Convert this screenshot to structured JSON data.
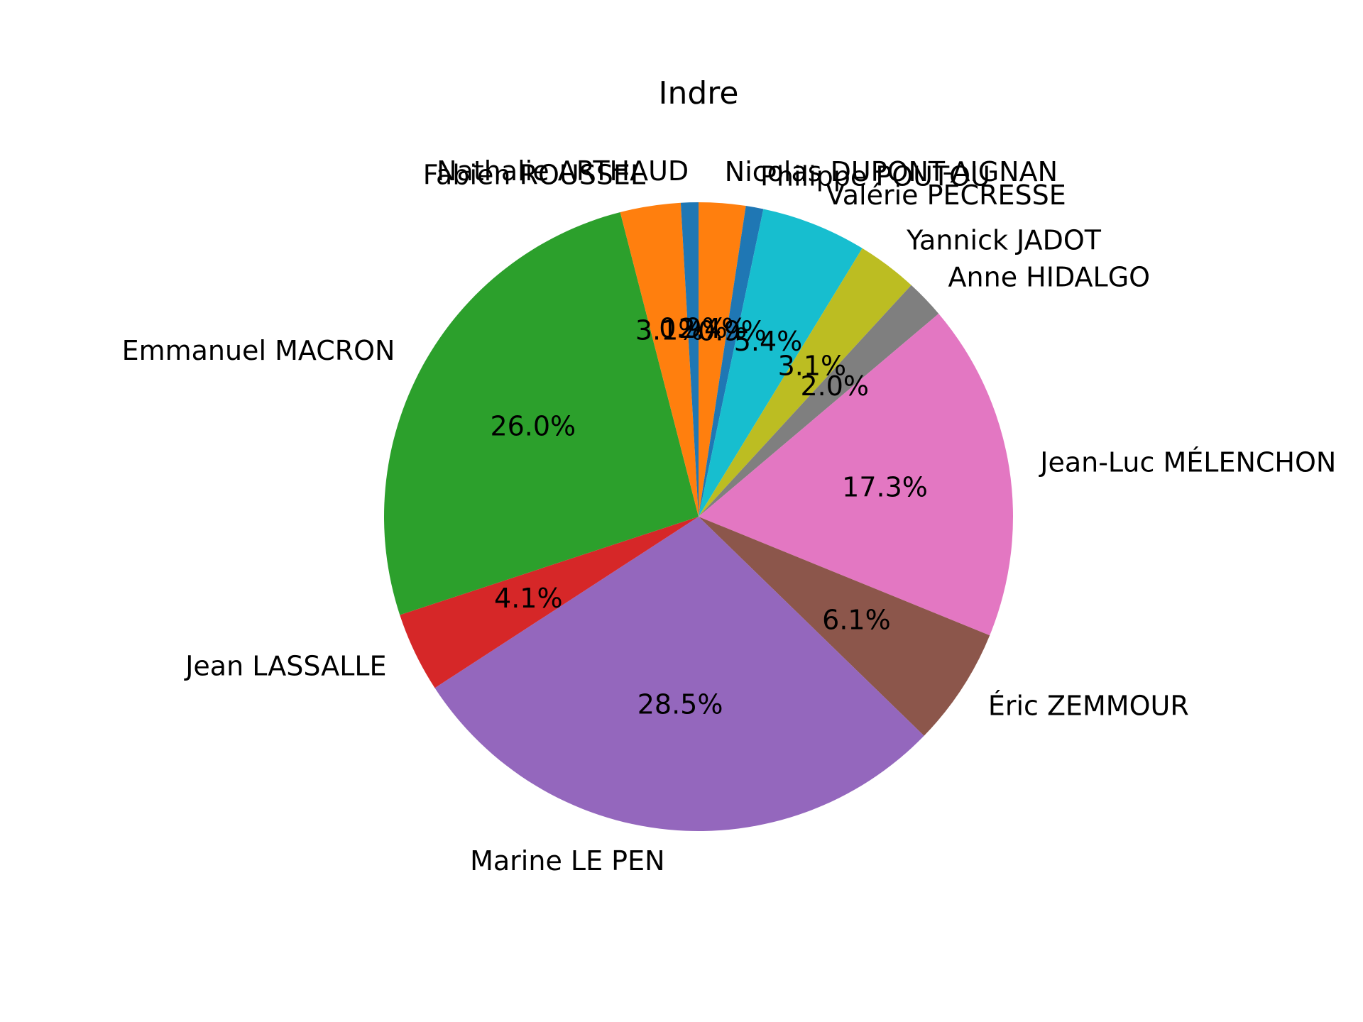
{
  "chart_data": {
    "type": "pie",
    "title": "Indre",
    "start_angle_deg": 90,
    "direction": "clockwise",
    "slices": [
      {
        "label": "Nicolas DUPONT-AIGNAN",
        "value": 2.4,
        "pct_label": "2.4%",
        "color": "#ff7f0e"
      },
      {
        "label": "Philippe POUTOU",
        "value": 0.9,
        "pct_label": "0.9%",
        "color": "#1f77b4"
      },
      {
        "label": "Valérie PÉCRESSE",
        "value": 5.4,
        "pct_label": "5.4%",
        "color": "#17becf"
      },
      {
        "label": "Yannick JADOT",
        "value": 3.1,
        "pct_label": "3.1%",
        "color": "#bcbd22"
      },
      {
        "label": "Anne HIDALGO",
        "value": 2.0,
        "pct_label": "2.0%",
        "color": "#7f7f7f"
      },
      {
        "label": "Jean-Luc MÉLENCHON",
        "value": 17.3,
        "pct_label": "17.3%",
        "color": "#e377c2"
      },
      {
        "label": "Éric ZEMMOUR",
        "value": 6.1,
        "pct_label": "6.1%",
        "color": "#8c564b"
      },
      {
        "label": "Marine LE PEN",
        "value": 28.5,
        "pct_label": "28.5%",
        "color": "#9467bd"
      },
      {
        "label": "Jean LASSALLE",
        "value": 4.1,
        "pct_label": "4.1%",
        "color": "#d62728"
      },
      {
        "label": "Emmanuel MACRON",
        "value": 26.0,
        "pct_label": "26.0%",
        "color": "#2ca02c"
      },
      {
        "label": "Fabien ROUSSEL",
        "value": 3.1,
        "pct_label": "3.1%",
        "color": "#ff7f0e"
      },
      {
        "label": "Nathalie ARTHAUD",
        "value": 0.9,
        "pct_label": "0.9%",
        "color": "#1f77b4"
      }
    ]
  }
}
